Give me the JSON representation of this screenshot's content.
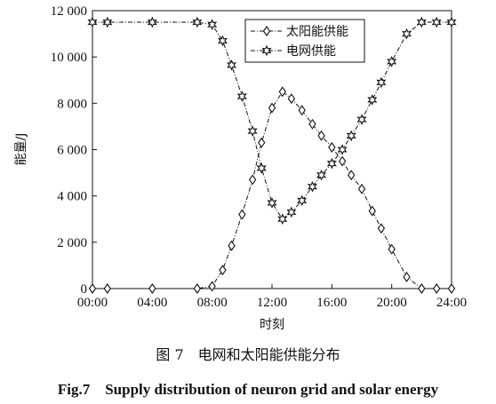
{
  "chart_data": {
    "type": "line",
    "xlabel": "时刻",
    "ylabel": "能量/J",
    "xlim": [
      0,
      24
    ],
    "ylim": [
      0,
      12000
    ],
    "x_ticks": [
      0,
      4,
      8,
      12,
      16,
      20,
      24
    ],
    "x_tick_labels": [
      "00:00",
      "04:00",
      "08:00",
      "12:00",
      "16:00",
      "20:00",
      "24:00"
    ],
    "y_ticks": [
      0,
      2000,
      4000,
      6000,
      8000,
      10000,
      12000
    ],
    "y_tick_labels": [
      "0",
      "2 000",
      "4 000",
      "6 000",
      "8 000",
      "10 000",
      "12 000"
    ],
    "legend_position": "top-right",
    "series": [
      {
        "name": "太阳能供能",
        "marker": "diamond",
        "color": "#111111",
        "x": [
          0,
          1,
          4,
          7,
          8,
          8.7,
          9.3,
          10,
          10.7,
          11.3,
          12,
          12.7,
          13.3,
          14,
          14.7,
          15.3,
          16,
          16.7,
          17.3,
          18,
          18.7,
          19.3,
          20,
          21,
          22,
          23,
          24
        ],
        "values": [
          0,
          0,
          0,
          0,
          100,
          800,
          1850,
          3200,
          4700,
          6300,
          7800,
          8500,
          8200,
          7700,
          7100,
          6600,
          6100,
          5500,
          4900,
          4300,
          3350,
          2600,
          1700,
          500,
          0,
          0,
          0
        ]
      },
      {
        "name": "电网供能",
        "marker": "star",
        "color": "#111111",
        "x": [
          0,
          1,
          4,
          7,
          8,
          8.7,
          9.3,
          10,
          10.7,
          11.3,
          12,
          12.7,
          13.3,
          14,
          14.7,
          15.3,
          16,
          16.7,
          17.3,
          18,
          18.7,
          19.3,
          20,
          21,
          22,
          23,
          24
        ],
        "values": [
          11500,
          11500,
          11500,
          11500,
          11400,
          10700,
          9650,
          8300,
          6800,
          5200,
          3700,
          3000,
          3300,
          3800,
          4400,
          4900,
          5400,
          6000,
          6600,
          7300,
          8150,
          8900,
          9800,
          11000,
          11500,
          11500,
          11500
        ]
      }
    ]
  },
  "caption": {
    "cn": "图 7　电网和太阳能供能分布",
    "en": "Fig.7　Supply distribution of neuron grid and solar energy"
  }
}
